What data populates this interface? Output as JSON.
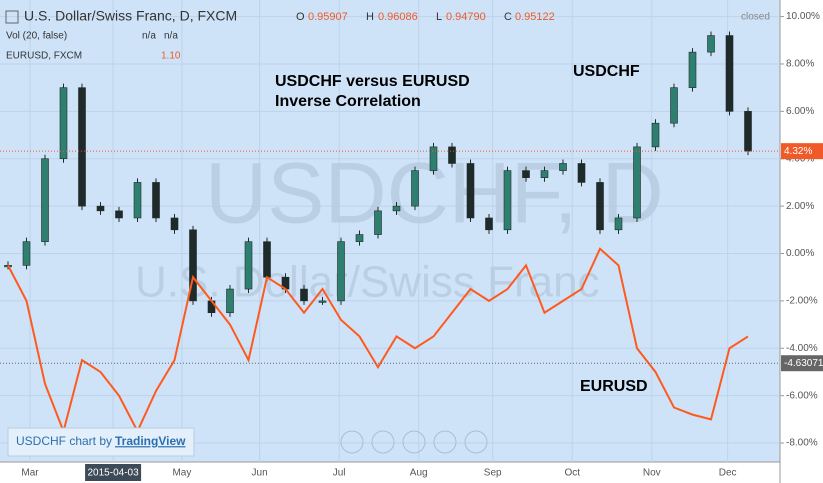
{
  "chart_data": {
    "type": "candle-line",
    "header": {
      "symbol": "U.S. Dollar/Swiss Franc, D, FXCM",
      "o_label": "O",
      "open": "0.95907",
      "h_label": "H",
      "high": "0.96086",
      "l_label": "L",
      "low": "0.94790",
      "c_label": "C",
      "close": "0.95122",
      "status": "closed",
      "vol": "Vol (20, false)",
      "vol_a": "n/a",
      "vol_b": "n/a",
      "compare": "EURUSD, FXCM",
      "compare_value": "1.10"
    },
    "watermark": [
      "USDCHF, D",
      "U.S. Dollar/Swiss Franc"
    ],
    "annotations": [
      "USDCHF versus EURUSD",
      "Inverse Correlation"
    ],
    "footer": {
      "text": "USDCHF chart by",
      "link": "TradingView"
    },
    "categories": [
      null,
      null,
      null,
      null,
      null,
      null,
      null,
      null,
      null,
      null,
      null,
      null,
      null,
      null,
      null,
      null,
      null,
      null,
      null,
      null,
      null,
      null,
      null,
      null,
      null,
      null,
      null,
      null,
      null,
      null,
      null,
      null,
      null,
      null,
      null,
      null,
      null,
      null,
      null,
      null,
      null
    ],
    "xticks": [
      {
        "value": 1.19,
        "label": "Mar"
      },
      {
        "value": 5.68,
        "label": "2015-04-03"
      },
      {
        "value": 9.4,
        "label": "May"
      },
      {
        "value": 13.6,
        "label": "Jun"
      },
      {
        "value": 17.9,
        "label": "Jul"
      },
      {
        "value": 22.2,
        "label": "Aug"
      },
      {
        "value": 26.2,
        "label": "Sep"
      },
      {
        "value": 30.5,
        "label": "Oct"
      },
      {
        "value": 34.8,
        "label": "Nov"
      },
      {
        "value": 38.9,
        "label": "Dec"
      }
    ],
    "series": [
      {
        "name": "USDCHF",
        "style": "candle",
        "color": "#2f7f70",
        "down_color": "#1f2a2a",
        "values": [
          -0.5,
          0.5,
          4,
          7,
          2,
          1.8,
          1.5,
          3,
          1.5,
          1,
          -2,
          -2.5,
          -1.5,
          0.5,
          -1,
          -1.5,
          -2,
          -2,
          0.5,
          0.8,
          1.8,
          2,
          3.5,
          4.5,
          3.8,
          1.5,
          1,
          3.5,
          3.2,
          3.5,
          3.8,
          3,
          1,
          1.5,
          4.5,
          5.5,
          7,
          8.5,
          9.2,
          6,
          4.32
        ]
      },
      {
        "name": "EURUSD",
        "style": "line",
        "color": "#ff5a1e",
        "values": [
          -0.5,
          -2,
          -5.5,
          -7.5,
          -4.5,
          -5,
          -6,
          -7.5,
          -5.8,
          -4.5,
          -1,
          -2,
          -3,
          -4.5,
          -1,
          -1.5,
          -2.5,
          -1.5,
          -2.8,
          -3.5,
          -4.8,
          -3.5,
          -4,
          -3.5,
          -2.5,
          -1.5,
          -2,
          -1.5,
          -0.5,
          -2.5,
          -2,
          -1.5,
          0.2,
          -0.5,
          -4,
          -5,
          -6.5,
          -6.8,
          -7,
          -4,
          -3.5
        ]
      }
    ],
    "price_labels": [
      {
        "value": 4.32,
        "label": "4.32%",
        "color": "#f05a28"
      },
      {
        "value": -4.63071,
        "label": "-4.63071",
        "color": "#666666"
      }
    ],
    "ylim": [
      -8.8,
      10.7
    ],
    "yticks": [
      {
        "value": 10,
        "label": "10.00%"
      },
      {
        "value": 8,
        "label": "8.00%"
      },
      {
        "value": 6,
        "label": "6.00%"
      },
      {
        "value": 4,
        "label": "4.00%"
      },
      {
        "value": 2,
        "label": "2.00%"
      },
      {
        "value": 0,
        "label": "0.00%"
      },
      {
        "value": -2,
        "label": "-2.00%"
      },
      {
        "value": -4,
        "label": "-4.00%"
      },
      {
        "value": -6,
        "label": "-6.00%"
      },
      {
        "value": -8,
        "label": "-8.00%"
      }
    ],
    "grid": true
  }
}
